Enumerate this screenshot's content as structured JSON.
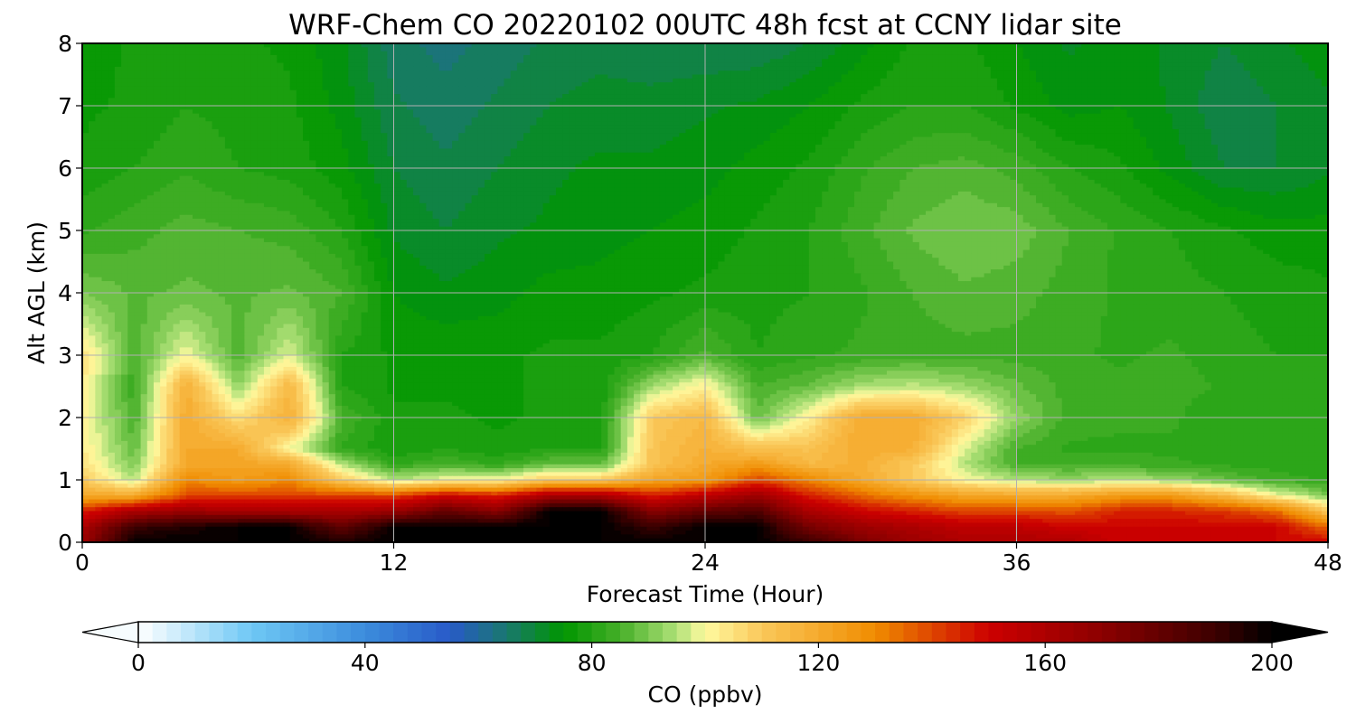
{
  "chart_data": {
    "type": "heatmap",
    "title": "WRF-Chem CO  20220102 00UTC 48h fcst at CCNY lidar site",
    "xlabel": "Forecast Time (Hour)",
    "ylabel": "Alt AGL (km)",
    "xlim": [
      0,
      48
    ],
    "ylim": [
      0,
      8
    ],
    "xticks": [
      0,
      12,
      24,
      36,
      48
    ],
    "yticks": [
      0,
      1,
      2,
      3,
      4,
      5,
      6,
      7,
      8
    ],
    "grid": true,
    "colorbar": {
      "label": "CO  (ppbv)",
      "range": [
        0,
        200
      ],
      "ticks": [
        0,
        40,
        80,
        120,
        160,
        200
      ],
      "extend": "both",
      "orientation": "horizontal"
    },
    "x": [
      0,
      2,
      4,
      6,
      8,
      10,
      12,
      14,
      16,
      18,
      20,
      22,
      24,
      26,
      28,
      30,
      32,
      34,
      36,
      38,
      40,
      42,
      44,
      46,
      48
    ],
    "y": [
      0,
      0.25,
      0.5,
      0.75,
      1,
      1.25,
      1.5,
      2,
      2.5,
      3,
      4,
      5,
      6,
      7,
      8
    ],
    "z": [
      [
        165,
        200,
        200,
        200,
        200,
        195,
        200,
        200,
        200,
        200,
        200,
        200,
        200,
        200,
        190,
        175,
        165,
        160,
        160,
        160,
        150,
        150,
        150,
        150,
        150
      ],
      [
        160,
        190,
        195,
        200,
        200,
        180,
        200,
        200,
        200,
        200,
        200,
        190,
        200,
        200,
        175,
        165,
        160,
        155,
        155,
        150,
        150,
        150,
        150,
        150,
        135
      ],
      [
        145,
        160,
        165,
        160,
        160,
        160,
        165,
        180,
        170,
        200,
        200,
        170,
        180,
        185,
        160,
        150,
        145,
        140,
        140,
        138,
        145,
        145,
        142,
        135,
        110
      ],
      [
        120,
        120,
        140,
        140,
        140,
        140,
        140,
        150,
        145,
        160,
        160,
        145,
        155,
        165,
        145,
        135,
        128,
        122,
        120,
        120,
        125,
        125,
        115,
        100,
        90
      ],
      [
        110,
        95,
        130,
        125,
        130,
        110,
        95,
        100,
        100,
        110,
        110,
        122,
        125,
        140,
        130,
        120,
        110,
        100,
        95,
        93,
        95,
        93,
        88,
        84,
        82
      ],
      [
        105,
        90,
        120,
        122,
        120,
        95,
        82,
        85,
        82,
        88,
        88,
        112,
        120,
        125,
        115,
        118,
        110,
        95,
        85,
        84,
        84,
        83,
        82,
        81,
        80
      ],
      [
        103,
        88,
        120,
        120,
        100,
        82,
        78,
        80,
        78,
        80,
        80,
        112,
        118,
        112,
        112,
        120,
        118,
        98,
        85,
        82,
        82,
        82,
        80,
        80,
        80
      ],
      [
        102,
        85,
        120,
        105,
        118,
        85,
        78,
        78,
        77,
        78,
        79,
        110,
        115,
        88,
        102,
        120,
        120,
        108,
        92,
        84,
        83,
        83,
        80,
        80,
        80
      ],
      [
        103,
        83,
        118,
        92,
        115,
        80,
        77,
        77,
        77,
        78,
        78,
        94,
        102,
        85,
        88,
        94,
        96,
        93,
        88,
        84,
        83,
        84,
        82,
        81,
        80
      ],
      [
        105,
        85,
        100,
        86,
        98,
        80,
        77,
        77,
        77,
        78,
        78,
        80,
        86,
        80,
        82,
        83,
        84,
        84,
        84,
        83,
        82,
        83,
        81,
        80,
        80
      ],
      [
        90,
        87,
        88,
        87,
        88,
        85,
        75,
        73,
        74,
        76,
        76,
        77,
        78,
        79,
        80,
        82,
        85,
        87,
        86,
        84,
        82,
        81,
        80,
        79,
        78
      ],
      [
        82,
        84,
        86,
        85,
        84,
        80,
        72,
        70,
        72,
        73,
        74,
        75,
        76,
        78,
        80,
        84,
        88,
        90,
        89,
        85,
        82,
        80,
        78,
        76,
        76
      ],
      [
        78,
        80,
        82,
        80,
        79,
        76,
        70,
        68,
        70,
        72,
        73,
        73,
        74,
        76,
        78,
        82,
        85,
        86,
        84,
        80,
        78,
        74,
        70,
        70,
        72
      ],
      [
        77,
        78,
        80,
        79,
        78,
        74,
        68,
        66,
        68,
        70,
        71,
        71,
        72,
        73,
        75,
        78,
        80,
        80,
        77,
        74,
        75,
        72,
        68,
        70,
        72
      ],
      [
        76,
        78,
        80,
        78,
        77,
        73,
        66,
        64,
        66,
        68,
        69,
        68,
        68,
        68,
        70,
        74,
        78,
        78,
        75,
        72,
        74,
        72,
        70,
        72,
        74
      ]
    ]
  }
}
